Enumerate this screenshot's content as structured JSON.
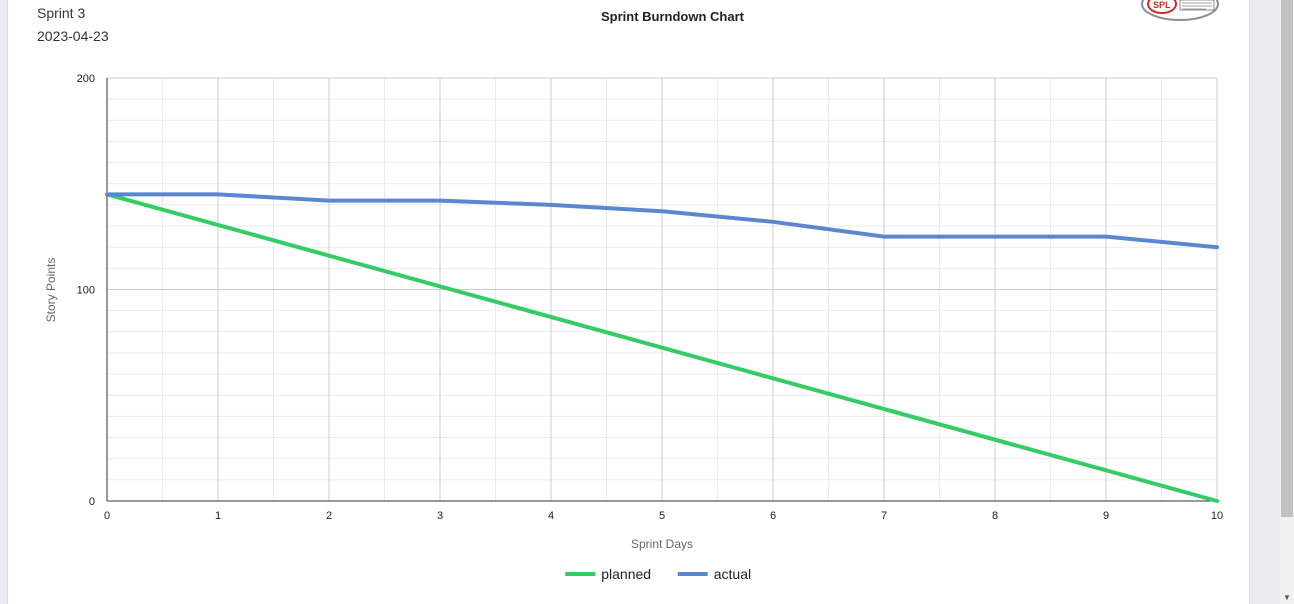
{
  "header": {
    "sprint_name": "Sprint 3",
    "sprint_date": "2023-04-23"
  },
  "logo": {
    "text": "SPL",
    "icon": "spl-logo-icon"
  },
  "colors": {
    "planned": "#33cc66",
    "actual": "#5b87d1"
  },
  "chart_data": {
    "type": "line",
    "title": "Sprint Burndown Chart",
    "xlabel": "Sprint Days",
    "ylabel": "Story Points",
    "xlim": [
      0,
      10
    ],
    "ylim": [
      0,
      200
    ],
    "x_ticks": [
      0,
      1,
      2,
      3,
      4,
      5,
      6,
      7,
      8,
      9,
      10
    ],
    "y_ticks": [
      0,
      100,
      200
    ],
    "grid": true,
    "legend_position": "bottom",
    "series": [
      {
        "name": "planned",
        "x": [
          0,
          10
        ],
        "y": [
          145,
          0
        ]
      },
      {
        "name": "actual",
        "x": [
          0,
          1,
          2,
          3,
          4,
          5,
          6,
          7,
          8,
          9,
          10
        ],
        "y": [
          145,
          145,
          142,
          142,
          140,
          137,
          132,
          125,
          125,
          125,
          120
        ]
      }
    ]
  }
}
